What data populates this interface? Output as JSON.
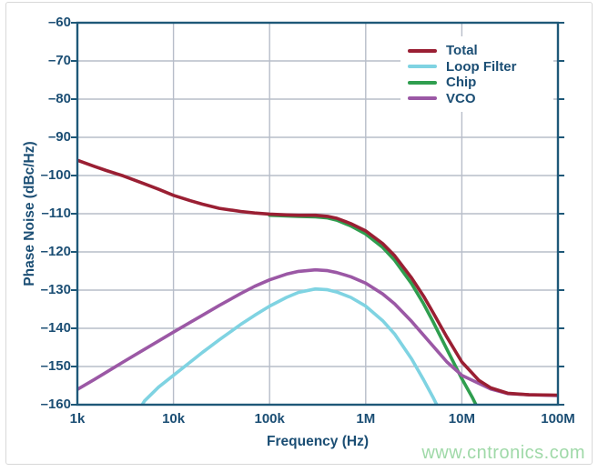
{
  "watermark": {
    "text": "www.cntronics.com",
    "color": "#9fd9a8"
  },
  "style": {
    "spine_color": "#1e5878",
    "grid_color": "#b7bdc9",
    "label_color": "#1b4e74",
    "plot_background": "#ffffff",
    "frame_border_color": "#d8d8d8"
  },
  "chart_data": {
    "type": "line",
    "title": "",
    "grid": true,
    "legend_position": "top-right",
    "x_axis": {
      "label": "Frequency (Hz)",
      "scale": "log",
      "min": 1000,
      "max": 100000000,
      "ticks": [
        {
          "v": 1000,
          "label": "1k"
        },
        {
          "v": 10000,
          "label": "10k"
        },
        {
          "v": 100000,
          "label": "100k"
        },
        {
          "v": 1000000,
          "label": "1M"
        },
        {
          "v": 10000000,
          "label": "10M"
        },
        {
          "v": 100000000,
          "label": "100M"
        }
      ]
    },
    "y_axis": {
      "label": "Phase Noise (dBc/Hz)",
      "min": -160,
      "max": -60,
      "ticks": [
        {
          "v": -60,
          "label": "–60"
        },
        {
          "v": -70,
          "label": "–70"
        },
        {
          "v": -80,
          "label": "–80"
        },
        {
          "v": -90,
          "label": "–90"
        },
        {
          "v": -100,
          "label": "–100"
        },
        {
          "v": -110,
          "label": "–110"
        },
        {
          "v": -120,
          "label": "–120"
        },
        {
          "v": -130,
          "label": "–130"
        },
        {
          "v": -140,
          "label": "–140"
        },
        {
          "v": -150,
          "label": "–150"
        },
        {
          "v": -160,
          "label": "–160"
        }
      ]
    },
    "series": [
      {
        "name": "Total",
        "color": "#9a1f33",
        "z": 4,
        "points": [
          [
            1000,
            -96
          ],
          [
            1500,
            -97.6
          ],
          [
            2000,
            -98.7
          ],
          [
            3000,
            -100.1
          ],
          [
            5000,
            -102.2
          ],
          [
            7000,
            -103.6
          ],
          [
            10000,
            -105.2
          ],
          [
            15000,
            -106.6
          ],
          [
            20000,
            -107.5
          ],
          [
            30000,
            -108.6
          ],
          [
            50000,
            -109.4
          ],
          [
            70000,
            -109.8
          ],
          [
            100000,
            -110.1
          ],
          [
            150000,
            -110.3
          ],
          [
            200000,
            -110.4
          ],
          [
            300000,
            -110.4
          ],
          [
            400000,
            -110.7
          ],
          [
            500000,
            -111.2
          ],
          [
            700000,
            -112.6
          ],
          [
            1000000,
            -114.5
          ],
          [
            1500000,
            -117.8
          ],
          [
            2000000,
            -121
          ],
          [
            3000000,
            -126.8
          ],
          [
            4000000,
            -131.6
          ],
          [
            5000000,
            -135.8
          ],
          [
            7000000,
            -142.3
          ],
          [
            10000000,
            -148.8
          ],
          [
            15000000,
            -153.6
          ],
          [
            20000000,
            -155.6
          ],
          [
            30000000,
            -157
          ],
          [
            50000000,
            -157.4
          ],
          [
            100000000,
            -157.5
          ]
        ]
      },
      {
        "name": "Loop Filter",
        "color": "#7fd3e2",
        "z": 1,
        "points": [
          [
            4000,
            -163
          ],
          [
            5000,
            -159
          ],
          [
            7000,
            -155.4
          ],
          [
            10000,
            -152.3
          ],
          [
            15000,
            -148.8
          ],
          [
            20000,
            -146.3
          ],
          [
            30000,
            -143
          ],
          [
            50000,
            -139
          ],
          [
            70000,
            -136.6
          ],
          [
            100000,
            -134.2
          ],
          [
            150000,
            -131.9
          ],
          [
            200000,
            -130.6
          ],
          [
            300000,
            -129.7
          ],
          [
            400000,
            -129.9
          ],
          [
            500000,
            -130.5
          ],
          [
            700000,
            -131.9
          ],
          [
            1000000,
            -134.2
          ],
          [
            1500000,
            -138
          ],
          [
            2000000,
            -141.5
          ],
          [
            3000000,
            -148
          ],
          [
            4000000,
            -153.5
          ],
          [
            5000000,
            -158
          ],
          [
            6000000,
            -162
          ]
        ]
      },
      {
        "name": "Chip",
        "color": "#2f9e4f",
        "z": 2,
        "points": [
          [
            100000,
            -110.4
          ],
          [
            150000,
            -110.6
          ],
          [
            200000,
            -110.7
          ],
          [
            300000,
            -110.8
          ],
          [
            400000,
            -111.1
          ],
          [
            500000,
            -111.7
          ],
          [
            700000,
            -113.2
          ],
          [
            1000000,
            -115.3
          ],
          [
            1500000,
            -118.8
          ],
          [
            2000000,
            -122.2
          ],
          [
            3000000,
            -128.3
          ],
          [
            4000000,
            -133.6
          ],
          [
            5000000,
            -138.2
          ],
          [
            7000000,
            -145.5
          ],
          [
            10000000,
            -153.2
          ],
          [
            13000000,
            -158.3
          ],
          [
            15000000,
            -161.5
          ]
        ]
      },
      {
        "name": "VCO",
        "color": "#9b58a5",
        "z": 3,
        "points": [
          [
            1000,
            -156
          ],
          [
            1500,
            -153.4
          ],
          [
            2000,
            -151.5
          ],
          [
            3000,
            -148.8
          ],
          [
            5000,
            -145.5
          ],
          [
            7000,
            -143.3
          ],
          [
            10000,
            -141
          ],
          [
            15000,
            -138.4
          ],
          [
            20000,
            -136.6
          ],
          [
            30000,
            -134
          ],
          [
            50000,
            -130.9
          ],
          [
            70000,
            -129
          ],
          [
            100000,
            -127.3
          ],
          [
            150000,
            -125.8
          ],
          [
            200000,
            -125.1
          ],
          [
            300000,
            -124.7
          ],
          [
            400000,
            -124.9
          ],
          [
            500000,
            -125.4
          ],
          [
            700000,
            -126.5
          ],
          [
            1000000,
            -128.2
          ],
          [
            1500000,
            -131
          ],
          [
            2000000,
            -133.6
          ],
          [
            3000000,
            -138.2
          ],
          [
            5000000,
            -144.6
          ],
          [
            7000000,
            -148.8
          ],
          [
            10000000,
            -152.3
          ],
          [
            15000000,
            -154.4
          ],
          [
            20000000,
            -155.9
          ],
          [
            30000000,
            -157.1
          ],
          [
            50000000,
            -157.4
          ],
          [
            100000000,
            -157.6
          ]
        ]
      }
    ]
  }
}
